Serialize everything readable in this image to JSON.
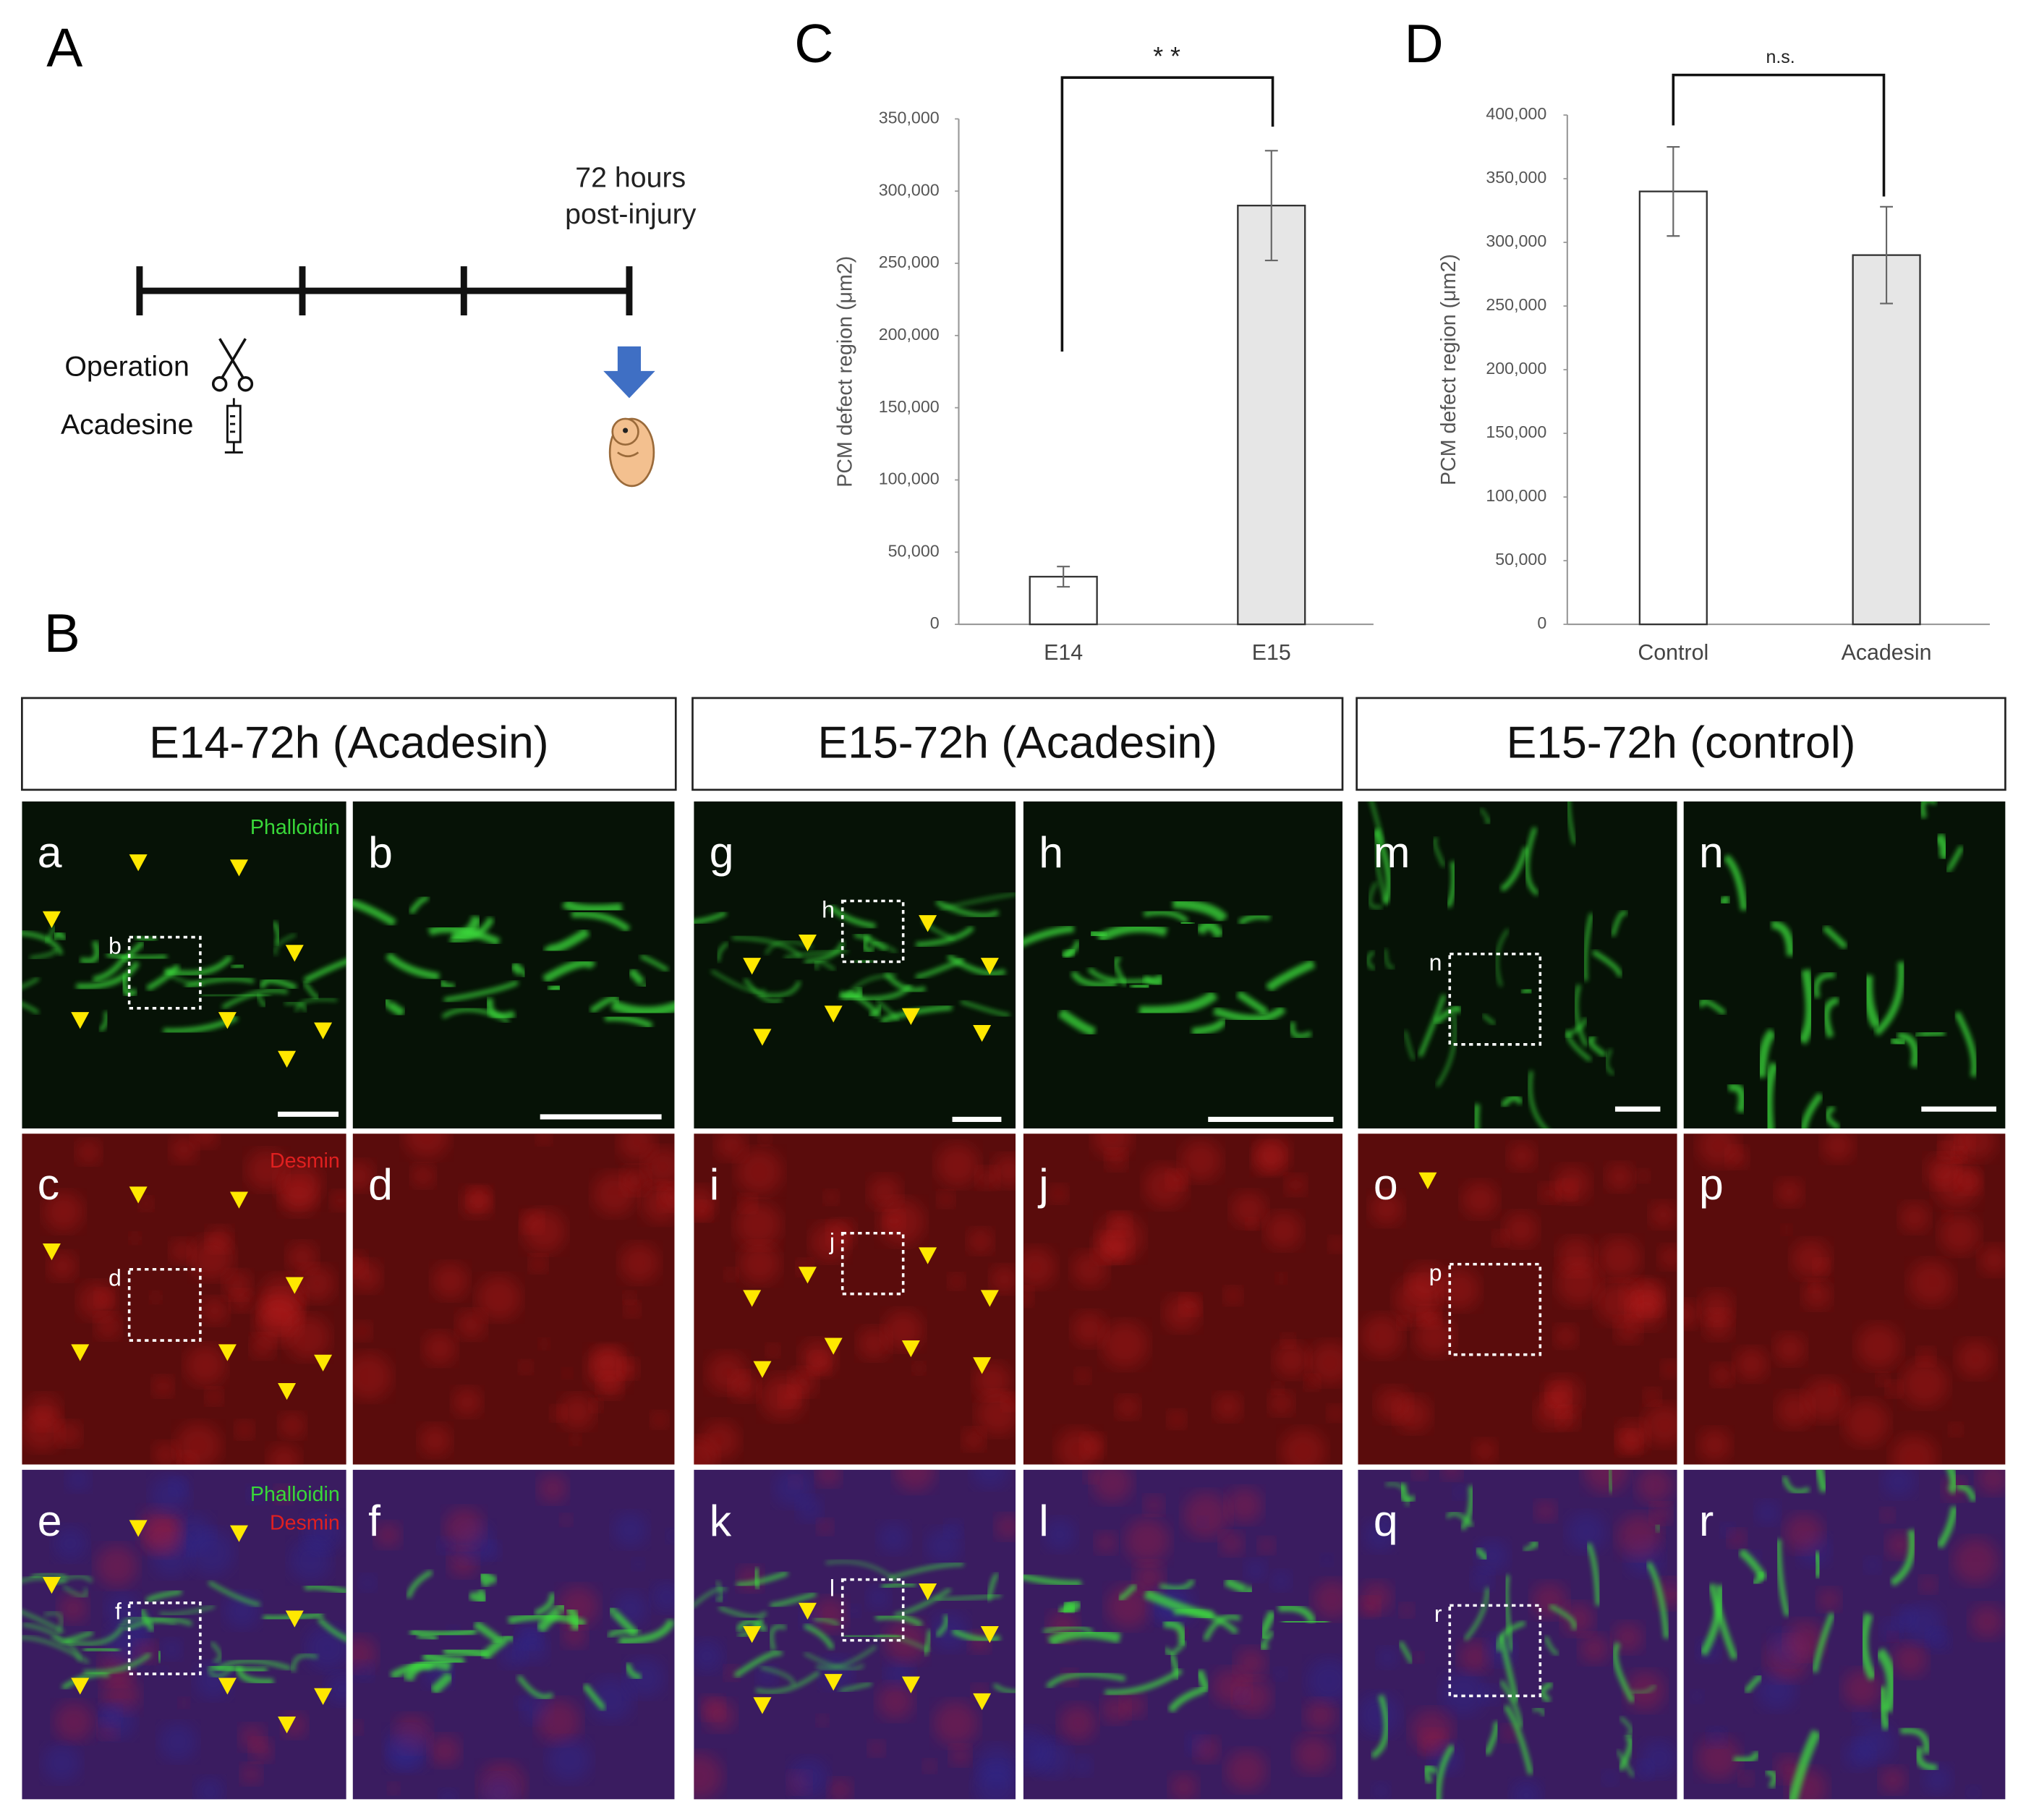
{
  "panel_letters": {
    "A": "A",
    "B": "B",
    "C": "C",
    "D": "D"
  },
  "timeline": {
    "end_label": [
      "72 hours",
      "post-injury"
    ],
    "operation": "Operation",
    "drug": "Acadesine"
  },
  "chart_data": [
    {
      "type": "bar",
      "ylabel": "PCM defect region (μm2)",
      "annotation": "* *",
      "categories": [
        "E14",
        "E15"
      ],
      "values": [
        33000,
        290000
      ],
      "errors": [
        7000,
        38000
      ],
      "colors": [
        "#ffffff",
        "#e6e6e6"
      ],
      "ylim": [
        0,
        350000
      ],
      "yticks": [
        0,
        {
          "value": 50000,
          "label": "50,000"
        },
        {
          "value": 100000,
          "label": "100,000"
        },
        {
          "value": 150000,
          "label": "150,000"
        },
        {
          "value": 200000,
          "label": "200,000"
        },
        {
          "value": 250000,
          "label": "250,000"
        },
        {
          "value": 300000,
          "label": "300,000"
        },
        {
          "value": 350000,
          "label": "350,000"
        }
      ],
      "grid": false
    },
    {
      "type": "bar",
      "ylabel": "PCM defect region (μm2)",
      "annotation": "n.s.",
      "categories": [
        "Control",
        "Acadesin"
      ],
      "values": [
        340000,
        290000
      ],
      "errors": [
        35000,
        38000
      ],
      "colors": [
        "#ffffff",
        "#e6e6e6"
      ],
      "ylim": [
        0,
        400000
      ],
      "yticks": [
        0,
        {
          "value": 50000,
          "label": "50,000"
        },
        {
          "value": 100000,
          "label": "100,000"
        },
        {
          "value": 150000,
          "label": "150,000"
        },
        {
          "value": 200000,
          "label": "200,000"
        },
        {
          "value": 250000,
          "label": "250,000"
        },
        {
          "value": 300000,
          "label": "300,000"
        },
        {
          "value": 350000,
          "label": "350,000"
        },
        {
          "value": 400000,
          "label": "400,000"
        }
      ],
      "grid": false
    }
  ],
  "panel_B": {
    "headers": [
      "E14-72h (Acadesin)",
      "E15-72h (Acadesin)",
      "E15-72h (control)"
    ],
    "letters": [
      "a",
      "b",
      "g",
      "h",
      "m",
      "n",
      "c",
      "d",
      "i",
      "j",
      "o",
      "p",
      "e",
      "f",
      "k",
      "l",
      "q",
      "r"
    ],
    "stains": [
      "Phalloidin",
      "Desmin",
      "Phalloidin",
      "Desmin"
    ],
    "inset_labels": [
      "b",
      "h",
      "n",
      "d",
      "j",
      "p",
      "f",
      "l",
      "r"
    ]
  }
}
